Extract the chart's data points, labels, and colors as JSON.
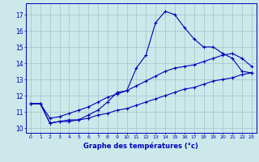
{
  "x": [
    0,
    1,
    2,
    3,
    4,
    5,
    6,
    7,
    8,
    9,
    10,
    11,
    12,
    13,
    14,
    15,
    16,
    17,
    18,
    19,
    20,
    21,
    22,
    23
  ],
  "temp_main": [
    11.5,
    11.5,
    10.3,
    10.4,
    10.5,
    10.5,
    10.8,
    11.1,
    11.6,
    12.2,
    12.3,
    13.7,
    14.5,
    16.5,
    17.2,
    17.0,
    16.2,
    15.5,
    15.0,
    15.0,
    14.6,
    14.3,
    13.5,
    13.4
  ],
  "temp_upper": [
    11.5,
    11.5,
    10.6,
    10.7,
    10.9,
    11.1,
    11.3,
    11.6,
    11.9,
    12.1,
    12.3,
    12.6,
    12.9,
    13.2,
    13.5,
    13.7,
    13.8,
    13.9,
    14.1,
    14.3,
    14.5,
    14.6,
    14.3,
    13.8
  ],
  "temp_lower": [
    11.5,
    11.5,
    10.3,
    10.4,
    10.4,
    10.5,
    10.6,
    10.8,
    10.9,
    11.1,
    11.2,
    11.4,
    11.6,
    11.8,
    12.0,
    12.2,
    12.4,
    12.5,
    12.7,
    12.9,
    13.0,
    13.1,
    13.3,
    13.4
  ],
  "bg_color": "#cce8ea",
  "grid_color": "#a0c4c8",
  "line_color": "#0000bb",
  "xlabel": "Graphe des températures (°c)",
  "ylabel_ticks": [
    10,
    11,
    12,
    13,
    14,
    15,
    16,
    17
  ],
  "xlim": [
    -0.5,
    23.5
  ],
  "ylim": [
    9.7,
    17.7
  ]
}
